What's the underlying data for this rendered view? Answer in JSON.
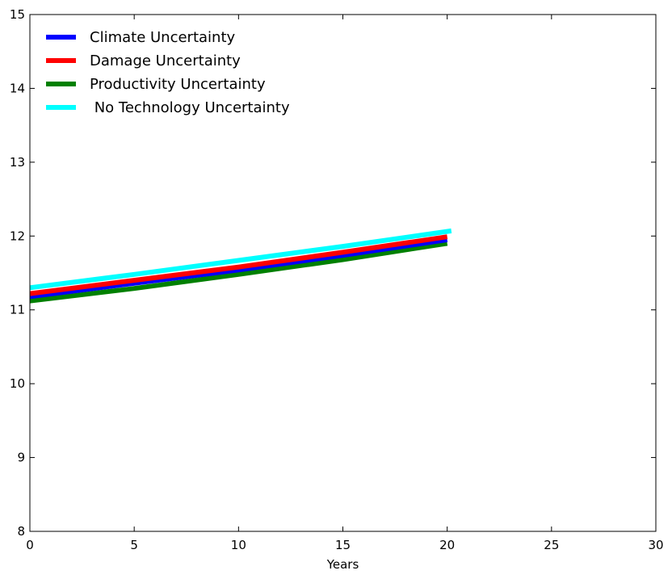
{
  "chart_data": {
    "type": "line",
    "title": "",
    "xlabel": "Years",
    "ylabel": "",
    "xlim": [
      0,
      30
    ],
    "ylim": [
      8,
      15
    ],
    "xticks": [
      0,
      5,
      10,
      15,
      20,
      25,
      30
    ],
    "yticks": [
      8,
      9,
      10,
      11,
      12,
      13,
      14,
      15
    ],
    "grid": false,
    "legend_position": "top-left",
    "series": [
      {
        "name": "Climate Uncertainty",
        "color": "#0000ff",
        "x": [
          0,
          5,
          10,
          15,
          20
        ],
        "y": [
          11.18,
          11.36,
          11.54,
          11.74,
          11.95
        ]
      },
      {
        "name": "Damage Uncertainty",
        "color": "#ff0000",
        "x": [
          0,
          5,
          10,
          15,
          20
        ],
        "y": [
          11.22,
          11.4,
          11.58,
          11.78,
          11.99
        ]
      },
      {
        "name": "Productivity Uncertainty",
        "color": "#008000",
        "x": [
          0,
          5,
          10,
          15,
          20
        ],
        "y": [
          11.12,
          11.29,
          11.48,
          11.68,
          11.9
        ]
      },
      {
        "name": " No Technology Uncertainty",
        "color": "#00ffff",
        "x": [
          0,
          5,
          10,
          15,
          20.2
        ],
        "y": [
          11.3,
          11.48,
          11.67,
          11.86,
          12.07
        ]
      }
    ]
  }
}
